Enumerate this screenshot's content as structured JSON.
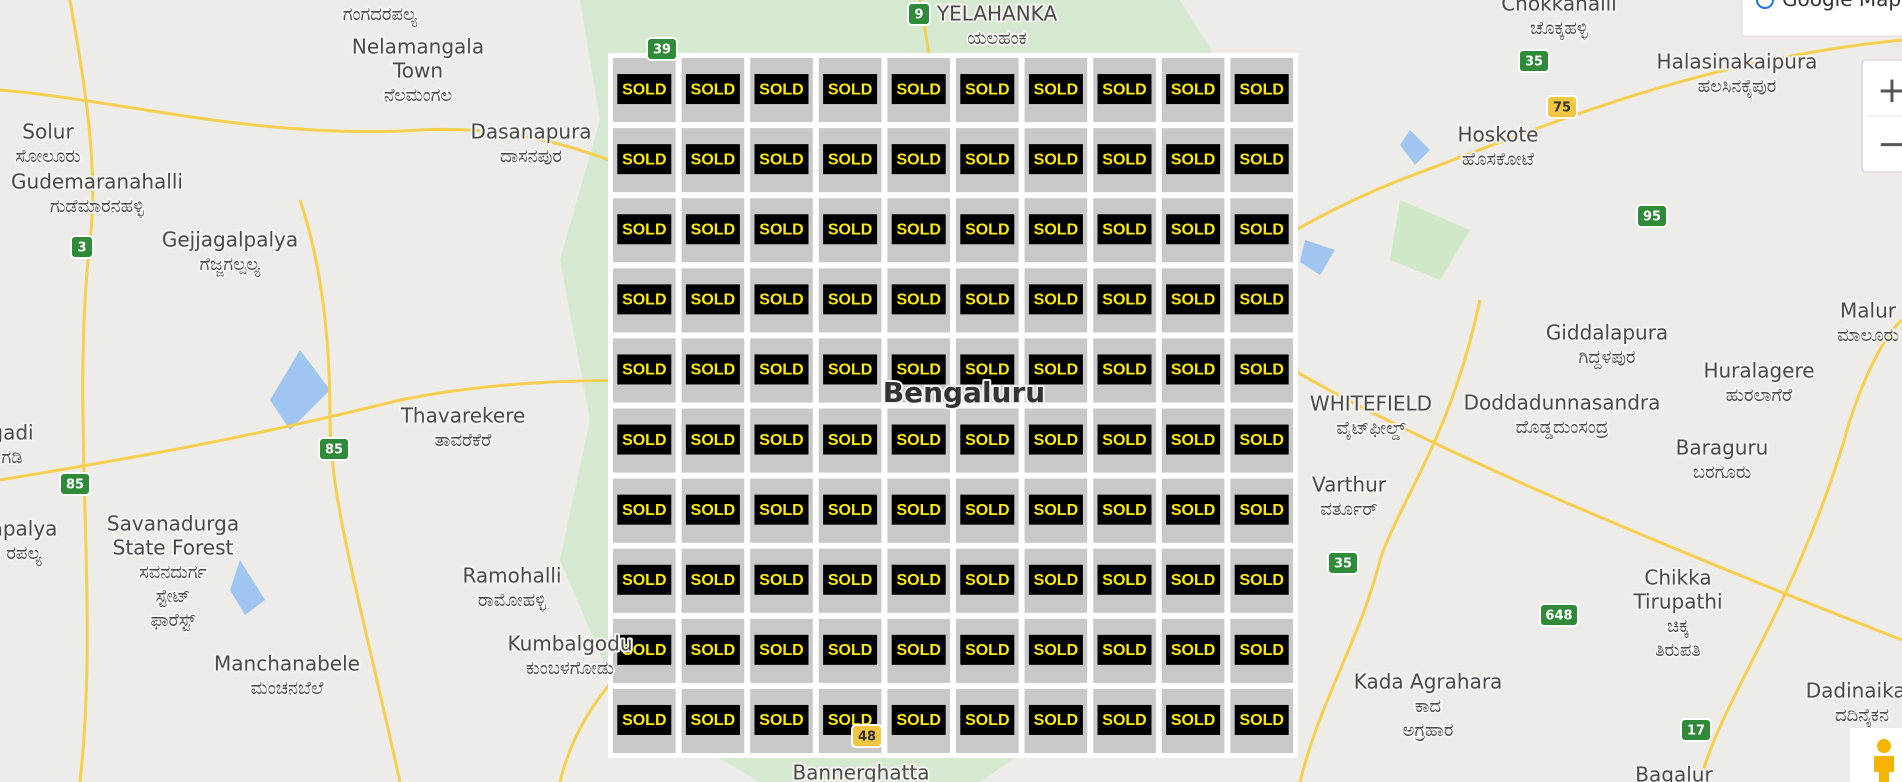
{
  "map": {
    "places": [
      {
        "name": [
          "ಗಂಗದರಪಲ್ಯ"
        ]
      },
      {
        "name": [
          "Nelamangala",
          "Town",
          "ನೆಲಮಂಗಲ"
        ]
      },
      {
        "name": [
          "Solur",
          "ಸೋಲೂರು"
        ]
      },
      {
        "name": [
          "Gudemaranahalli",
          "ಗುಡೆಮಾರನಹಳ್ಳಿ"
        ]
      },
      {
        "name": [
          "Gejjagalpalya",
          "ಗೆಜ್ಜಗಲ್ಪಲ್ಯ"
        ]
      },
      {
        "name": [
          "Dasanapura",
          "ದಾಸನಪುರ"
        ]
      },
      {
        "name": [
          "Thavarekere",
          "ತಾವರೆಕೆರೆ"
        ]
      },
      {
        "name": [
          "Savanadurga",
          "State Forest",
          "ಸವನದುರ್ಗ",
          "ಸ್ಟೇಟ್",
          "ಫಾರೆಸ್ಟ್"
        ]
      },
      {
        "name": [
          "Ramohalli",
          "ರಾಮೋಹಳ್ಳಿ"
        ]
      },
      {
        "name": [
          "Kumbalgodu",
          "ಕುಂಬಳಗೋಡು"
        ]
      },
      {
        "name": [
          "Manchanabele",
          "ಮಂಚನಬೆಲೆ"
        ]
      },
      {
        "name": [
          "YELAHANKA",
          "ಯಲಹಂಕ"
        ]
      },
      {
        "name": [
          "Chokkahalli",
          "ಚೊಕ್ಕಹಳ್ಳಿ"
        ]
      },
      {
        "name": [
          "Halasinakaipura",
          "ಹಲಸಿನಕೈಪುರ"
        ]
      },
      {
        "name": [
          "Hoskote",
          "ಹೊಸಕೋಟೆ"
        ]
      },
      {
        "name": [
          "Giddalapura",
          "ಗಿದ್ದಳಪುರ"
        ]
      },
      {
        "name": [
          "Malur",
          "ಮಾಲೂರು"
        ]
      },
      {
        "name": [
          "Huralagere",
          "ಹುರಲಾಗೆರೆ"
        ]
      },
      {
        "name": [
          "WHITEFIELD",
          "ವೈಟ್‌ಫೀಲ್ಡ್"
        ]
      },
      {
        "name": [
          "Doddadunnasandra",
          "ದೊಡ್ಡದುಂಸಂದ್ರ"
        ]
      },
      {
        "name": [
          "Baraguru",
          "ಬರಗೂರು"
        ]
      },
      {
        "name": [
          "Varthur",
          "ವರ್ತೂರ್"
        ]
      },
      {
        "name": [
          "Chikka",
          "Tirupathi",
          "ಚಿಕ್ಕ",
          "ತಿರುಪತಿ"
        ]
      },
      {
        "name": [
          "Kada Agrahara",
          "ಕಾದ",
          "ಅಗ್ರಹಾರ"
        ]
      },
      {
        "name": [
          "Dadinaikan",
          "ದದಿನೈಕನ"
        ]
      },
      {
        "name": [
          "Bannerghatta"
        ]
      },
      {
        "name": [
          "Bagalur"
        ]
      },
      {
        "name": [
          "gadi",
          "ಗಡಿ"
        ]
      },
      {
        "name": [
          "apalya",
          "ರಪಲ್ಯ"
        ]
      },
      {
        "name": [
          "Bengaluru"
        ]
      }
    ],
    "shields": [
      "39",
      "9",
      "35",
      "75",
      "3",
      "95",
      "85",
      "85",
      "35",
      "648",
      "17",
      "48"
    ],
    "listings": [
      [
        "SOLD",
        "SOLD",
        "SOLD",
        "SOLD",
        "SOLD",
        "SOLD",
        "SOLD",
        "SOLD",
        "SOLD",
        "SOLD"
      ],
      [
        "SOLD",
        "SOLD",
        "SOLD",
        "SOLD",
        "SOLD",
        "SOLD",
        "SOLD",
        "SOLD",
        "SOLD",
        "SOLD"
      ],
      [
        "SOLD",
        "SOLD",
        "SOLD",
        "SOLD",
        "SOLD",
        "SOLD",
        "SOLD",
        "SOLD",
        "SOLD",
        "SOLD"
      ],
      [
        "SOLD",
        "SOLD",
        "SOLD",
        "SOLD",
        "SOLD",
        "SOLD",
        "SOLD",
        "SOLD",
        "SOLD",
        "SOLD"
      ],
      [
        "SOLD",
        "SOLD",
        "SOLD",
        "SOLD",
        "SOLD",
        "SOLD",
        "SOLD",
        "SOLD",
        "SOLD",
        "SOLD"
      ],
      [
        "SOLD",
        "SOLD",
        "SOLD",
        "SOLD",
        "SOLD",
        "SOLD",
        "SOLD",
        "SOLD",
        "SOLD",
        "SOLD"
      ],
      [
        "SOLD",
        "SOLD",
        "SOLD",
        "SOLD",
        "SOLD",
        "SOLD",
        "SOLD",
        "SOLD",
        "SOLD",
        "SOLD"
      ],
      [
        "SOLD",
        "SOLD",
        "SOLD",
        "SOLD",
        "SOLD",
        "SOLD",
        "SOLD",
        "SOLD",
        "SOLD",
        "SOLD"
      ],
      [
        "SOLD",
        "SOLD",
        "SOLD",
        "SOLD",
        "SOLD",
        "SOLD",
        "SOLD",
        "SOLD",
        "SOLD",
        "SOLD"
      ],
      [
        "SOLD",
        "SOLD",
        "SOLD",
        "SOLD",
        "SOLD",
        "SOLD",
        "SOLD",
        "SOLD",
        "SOLD",
        "SOLD"
      ]
    ],
    "controls": {
      "map_type": "Google Maps",
      "zoom_in": "+",
      "zoom_out": "−"
    }
  }
}
